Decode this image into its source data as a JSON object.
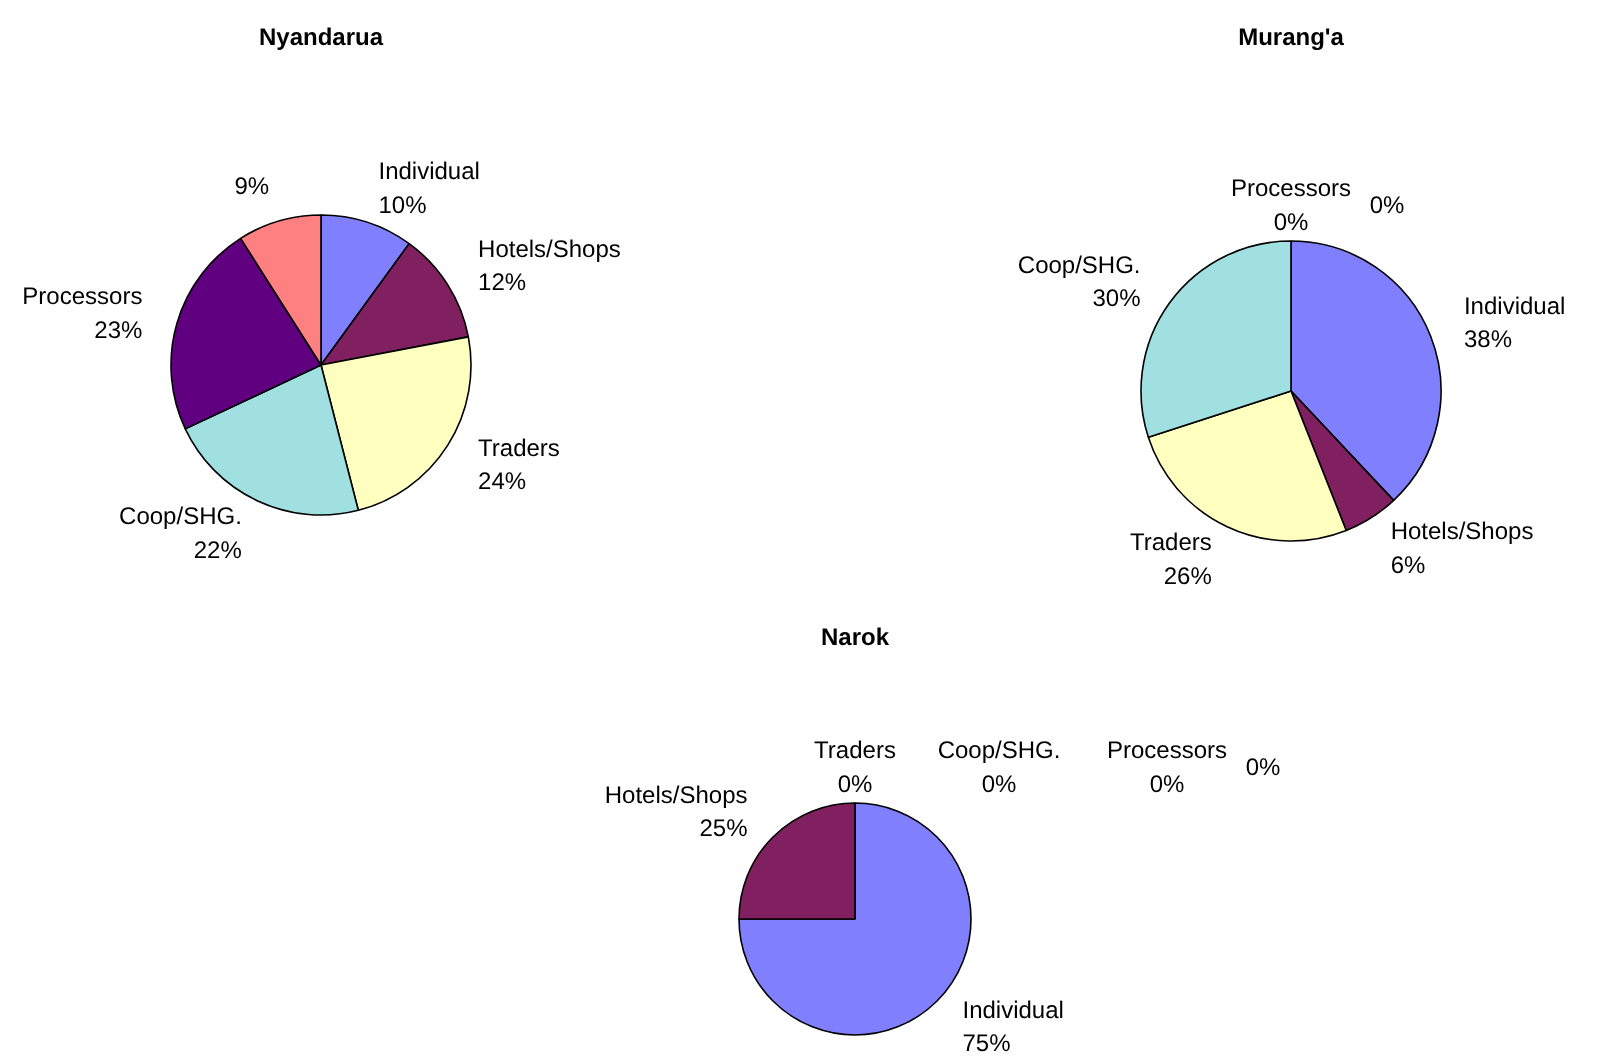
{
  "chart_data": [
    {
      "type": "pie",
      "title": "Nyandarua",
      "categories": [
        "Individual",
        "Hotels/Shops",
        "Traders",
        "Coop/SHG.",
        "Processors",
        null
      ],
      "values": [
        10,
        12,
        24,
        22,
        23,
        9
      ],
      "value_labels": [
        "10%",
        "12%",
        "24%",
        "22%",
        "23%",
        "9%"
      ],
      "colors": [
        "#8080ff",
        "#802060",
        "#ffffc0",
        "#a0e0e0",
        "#600080",
        "#ff8080"
      ]
    },
    {
      "type": "pie",
      "title": "Murang'a",
      "categories": [
        "Individual",
        "Hotels/Shops",
        "Traders",
        "Coop/SHG.",
        "Processors",
        null
      ],
      "values": [
        38,
        6,
        26,
        30,
        0,
        0
      ],
      "value_labels": [
        "38%",
        "6%",
        "26%",
        "30%",
        "0%",
        "0%"
      ],
      "colors": [
        "#8080ff",
        "#802060",
        "#ffffc0",
        "#a0e0e0",
        "#600080",
        "#ff8080"
      ]
    },
    {
      "type": "pie",
      "title": "Narok",
      "categories": [
        "Individual",
        "Hotels/Shops",
        "Traders",
        "Coop/SHG.",
        "Processors",
        null
      ],
      "values": [
        75,
        25,
        0,
        0,
        0,
        0
      ],
      "value_labels": [
        "75%",
        "25%",
        "0%",
        "0%",
        "0%",
        "0%"
      ],
      "colors": [
        "#8080ff",
        "#802060",
        "#ffffc0",
        "#a0e0e0",
        "#600080",
        "#ff8080"
      ]
    }
  ]
}
